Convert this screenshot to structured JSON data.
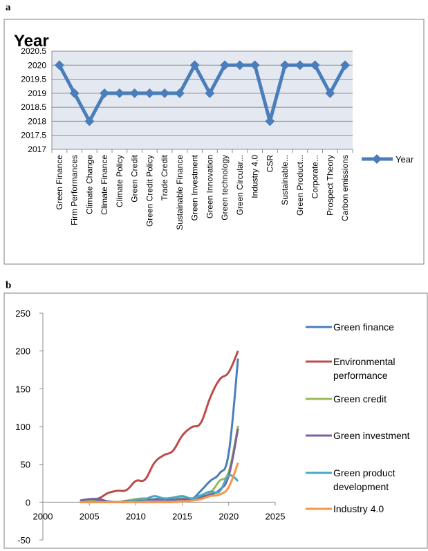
{
  "panel_a": {
    "label": "a",
    "title": "Year"
  },
  "panel_b": {
    "label": "b"
  },
  "chart_data": [
    {
      "type": "line",
      "title": "Year",
      "categories": [
        "Green Finance",
        "Firm Performances",
        "Climate Change",
        "Climate Finance",
        "Climate Policy",
        "Green Credit",
        "Green Credit Policy",
        "Trade Credit",
        "Sustainable Finance",
        "Green Investment",
        "Green Innovation",
        "Green technology",
        "Green Circular...",
        "Industry 4.0",
        "CSR",
        "Sustainable...",
        "Green Product...",
        "Corporate...",
        "Prospect Theory",
        "Carbon emissions"
      ],
      "series": [
        {
          "name": "Year",
          "color": "#4a7ebb",
          "values": [
            2020,
            2019,
            2018,
            2019,
            2019,
            2019,
            2019,
            2019,
            2019,
            2020,
            2019,
            2020,
            2020,
            2020,
            2018,
            2020,
            2020,
            2020,
            2019,
            2020
          ]
        }
      ],
      "ylim": [
        2017,
        2020.5
      ],
      "yticks": [
        "2017",
        "2017.5",
        "2018",
        "2018.5",
        "2019",
        "2019.5",
        "2020",
        "2020.5"
      ],
      "legend": "right",
      "grid": true
    },
    {
      "type": "line",
      "x": [
        2004,
        2005,
        2006,
        2007,
        2008,
        2009,
        2010,
        2011,
        2012,
        2013,
        2014,
        2015,
        2016,
        2017,
        2018,
        2019,
        2020,
        2021
      ],
      "series": [
        {
          "name": "Green finance",
          "color": "#4a7ebb",
          "values": [
            0,
            1,
            2,
            1,
            0,
            1,
            2,
            3,
            4,
            5,
            4,
            5,
            4,
            15,
            28,
            38,
            65,
            190
          ]
        },
        {
          "name": "Environmental performance",
          "color": "#be4b48",
          "values": [
            2,
            4,
            5,
            12,
            15,
            16,
            28,
            30,
            52,
            62,
            68,
            88,
            99,
            105,
            138,
            162,
            172,
            200
          ]
        },
        {
          "name": "Green credit",
          "color": "#98b954",
          "values": [
            0,
            2,
            4,
            1,
            0,
            2,
            4,
            5,
            3,
            4,
            4,
            5,
            4,
            7,
            12,
            28,
            40,
            101
          ]
        },
        {
          "name": "Green investment",
          "color": "#7d60a0",
          "values": [
            2,
            4,
            4,
            1,
            0,
            1,
            2,
            3,
            3,
            3,
            3,
            4,
            4,
            7,
            10,
            16,
            35,
            97
          ]
        },
        {
          "name": "Green product development",
          "color": "#46aac5",
          "values": [
            0,
            0,
            0,
            0,
            0,
            0,
            3,
            4,
            8,
            5,
            6,
            8,
            5,
            9,
            14,
            14,
            35,
            28
          ]
        },
        {
          "name": "Industry 4.0",
          "color": "#f79646",
          "values": [
            0,
            0,
            0,
            0,
            0,
            0,
            0,
            0,
            0,
            0,
            0,
            1,
            2,
            4,
            8,
            10,
            20,
            52
          ]
        }
      ],
      "legend_labels": [
        [
          "Green finance"
        ],
        [
          "Environmental",
          "performance"
        ],
        [
          "Green credit"
        ],
        [
          "Green investment"
        ],
        [
          "Green product",
          "development"
        ],
        [
          "Industry 4.0"
        ]
      ],
      "xlim": [
        2000,
        2025
      ],
      "ylim": [
        -50,
        250
      ],
      "xticks": [
        "2000",
        "2005",
        "2010",
        "2015",
        "2020",
        "2025"
      ],
      "yticks": [
        "-50",
        "0",
        "50",
        "100",
        "150",
        "200",
        "250"
      ],
      "legend": "right",
      "grid": false
    }
  ]
}
